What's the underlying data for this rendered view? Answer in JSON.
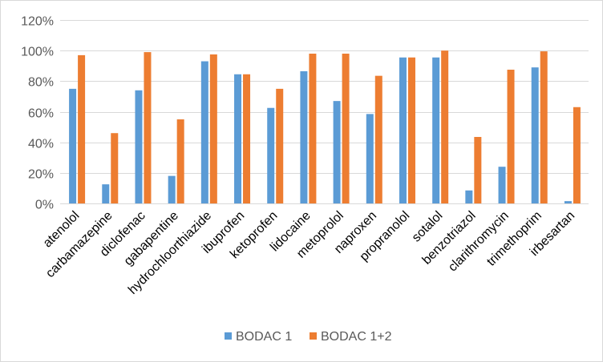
{
  "chart_data": {
    "type": "bar",
    "categories": [
      "atenolol",
      "carbamazepine",
      "diclofenac",
      "gabapentine",
      "hydrochloorthiazide",
      "ibuprofen",
      "ketoprofen",
      "lidocaine",
      "metoprolol",
      "naproxen",
      "propranolol",
      "sotalol",
      "benzotriazol",
      "clarithromycin",
      "trimethoprim",
      "irbesartan"
    ],
    "series": [
      {
        "name": "BODAC 1",
        "color": "#5b9bd5",
        "values": [
          75,
          12.5,
          74,
          18,
          93,
          84.5,
          62.5,
          86.5,
          67,
          58.5,
          95.5,
          95.5,
          8.5,
          24,
          89,
          1.5
        ]
      },
      {
        "name": "BODAC 1+2",
        "color": "#ed7d31",
        "values": [
          97,
          46,
          99,
          55,
          97.5,
          84.5,
          75,
          98,
          98,
          83.5,
          95.5,
          100,
          43.5,
          87.5,
          99.5,
          63
        ]
      }
    ],
    "ylim": [
      0,
      120
    ],
    "yticks": [
      "0%",
      "20%",
      "40%",
      "60%",
      "80%",
      "100%",
      "120%"
    ],
    "ytick_values": [
      0,
      20,
      40,
      60,
      80,
      100,
      120
    ],
    "grid": true,
    "legend": "bottom"
  }
}
